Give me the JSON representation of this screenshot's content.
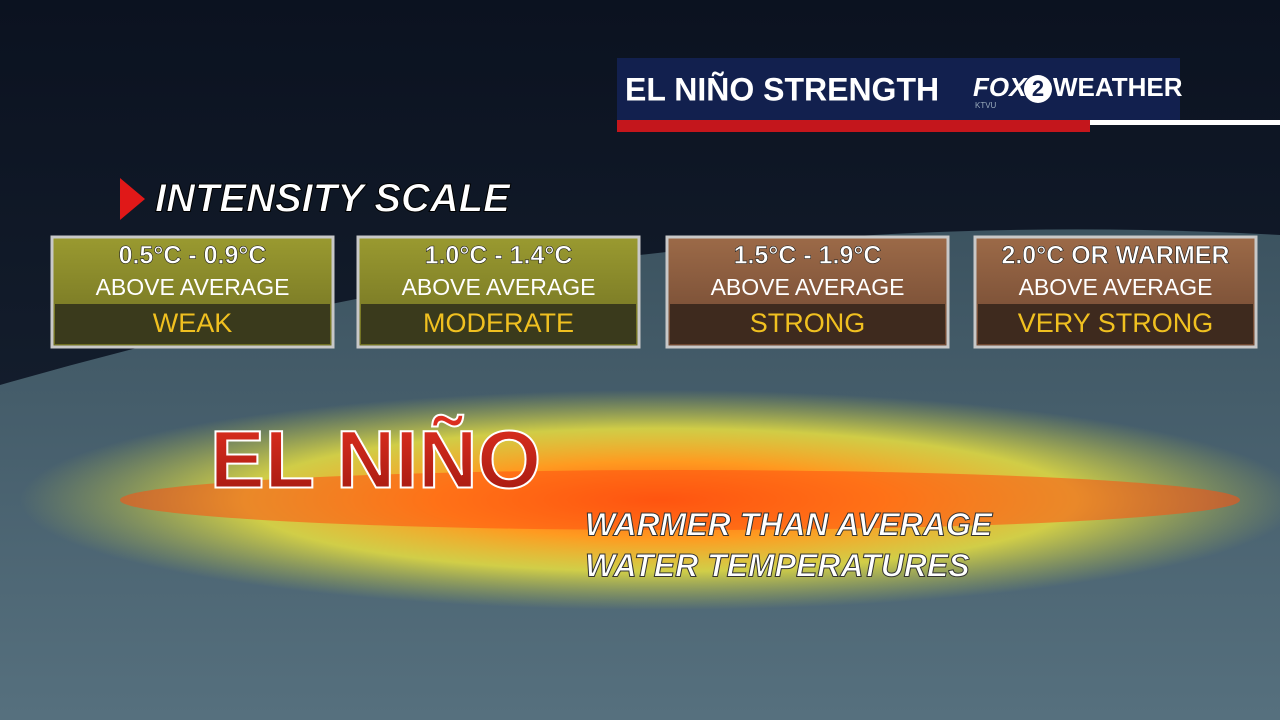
{
  "header": {
    "title": "EL NIÑO STRENGTH",
    "logo": {
      "brand": "FOX",
      "number": "2",
      "label": "WEATHER",
      "station": "KTVU"
    }
  },
  "section": {
    "title": "INTENSITY SCALE"
  },
  "scale": [
    {
      "range": "0.5°C - 0.9°C",
      "note": "ABOVE AVERAGE",
      "label": "WEAK"
    },
    {
      "range": "1.0°C - 1.4°C",
      "note": "ABOVE AVERAGE",
      "label": "MODERATE"
    },
    {
      "range": "1.5°C - 1.9°C",
      "note": "ABOVE AVERAGE",
      "label": "STRONG"
    },
    {
      "range": "2.0°C OR WARMER",
      "note": "ABOVE AVERAGE",
      "label": "VERY STRONG"
    }
  ],
  "main": {
    "title": "EL NIÑO",
    "subtitle": [
      "WARMER THAN AVERAGE",
      "WATER TEMPERATURES"
    ]
  }
}
